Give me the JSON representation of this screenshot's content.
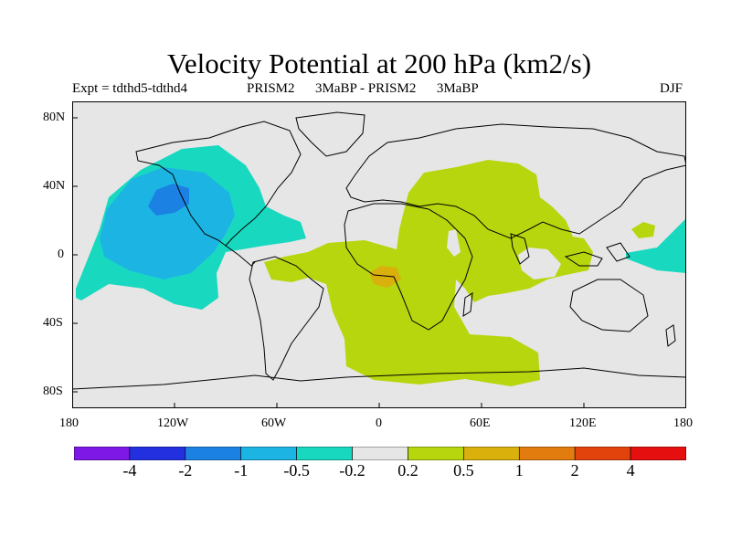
{
  "header": {
    "title": "Velocity Potential at 200 hPa (km2/s)",
    "experiment": "Expt = tdthd5-tdthd4",
    "comparison": "PRISM2      3MaBP - PRISM2      3MaBP",
    "season": "DJF"
  },
  "axes": {
    "y_ticks": [
      "80N",
      "40N",
      "0",
      "40S",
      "80S"
    ],
    "x_ticks": [
      "180",
      "120W",
      "60W",
      "0",
      "60E",
      "120E",
      "180"
    ]
  },
  "colorbar": {
    "colors": [
      "#7e18e6",
      "#2330e0",
      "#1b82e3",
      "#1cb5e3",
      "#18d9c0",
      "#e6e6e6",
      "#b7d60e",
      "#d9b00c",
      "#e27c0e",
      "#e2430c",
      "#e50f0f"
    ],
    "labels": [
      "-4",
      "-2",
      "-1",
      "-0.5",
      "-0.2",
      "0.2",
      "0.5",
      "1",
      "2",
      "4"
    ]
  },
  "map": {
    "background": "#e6e6e6",
    "legend_levels": [
      "cyan: -0.5 to -0.2",
      "light blue: -1 to -0.5",
      "blue: -2 to -1",
      "yellow-green: 0.2 to 0.5",
      "orange: 0.5 to 1"
    ]
  }
}
